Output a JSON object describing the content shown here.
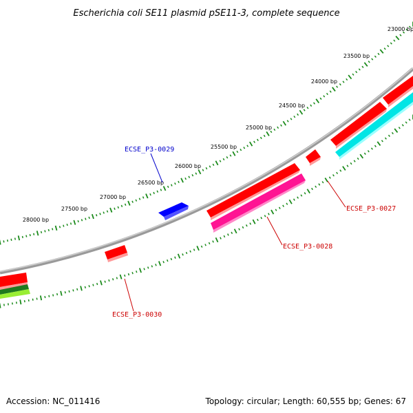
{
  "title": "Escherichia coli SE11 plasmid pSE11-3, complete sequence",
  "footer": {
    "accession": "Accession: NC_011416",
    "summary": "Topology: circular; Length: 60,555 bp; Genes: 67"
  },
  "colors": {
    "backbone": "#888888",
    "ticks": "#1a8a1a",
    "forward_gene": "#ff0000",
    "reverse_gene": "#ff0000",
    "highlight_label": "#0000cc",
    "label": "#cc0000",
    "pink_feature": "#ff1493",
    "cyan_feature": "#00e5e5",
    "blue_feature": "#0000ff"
  },
  "scale": {
    "tick_labels": [
      "23000 bp",
      "23500 bp",
      "24000 bp",
      "24500 bp",
      "25000 bp",
      "25500 bp",
      "26000 bp",
      "26500 bp",
      "27000 bp",
      "27500 bp",
      "28000 bp"
    ]
  },
  "genes": [
    {
      "name": "ECSE_P3-0029",
      "color": "#0000cc"
    },
    {
      "name": "ECSE_P3-0027",
      "color": "#cc0000"
    },
    {
      "name": "ECSE_P3-0028",
      "color": "#cc0000"
    },
    {
      "name": "ECSE_P3-0030",
      "color": "#cc0000"
    }
  ]
}
